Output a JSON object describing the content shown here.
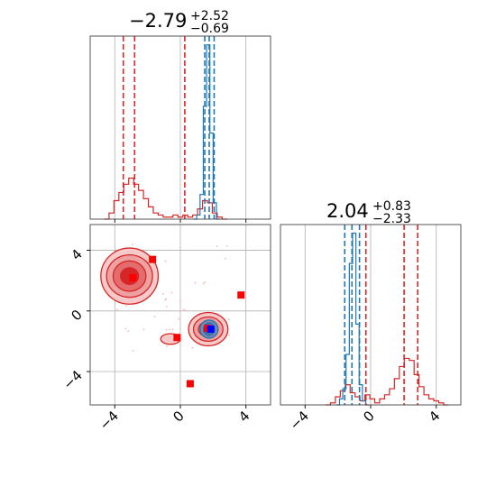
{
  "chart_data": {
    "type": "corner",
    "grid": true,
    "panels": [
      {
        "id": "marginal-param-1",
        "type": "histogram",
        "title": {
          "value": "−2.79",
          "upper": "+2.52",
          "lower": "−0.69"
        },
        "xlim": [
          -5.5,
          5.5
        ],
        "xticks": [
          -4,
          0,
          4
        ],
        "xtick_labels_shown": false,
        "series": [
          {
            "color": "#d62728",
            "x": [
              -4.5,
              -4.2,
              -3.9,
              -3.6,
              -3.3,
              -3.0,
              -2.7,
              -2.4,
              -2.1,
              -1.8,
              -1.5,
              -1.2,
              -0.9,
              -0.6,
              -0.3,
              0.0,
              0.3,
              0.6,
              0.9,
              1.2,
              1.5,
              1.8,
              2.1,
              2.4,
              2.7
            ],
            "counts": [
              0,
              3,
              9,
              13,
              17,
              20,
              17,
              14,
              10,
              6,
              3,
              2,
              1,
              1,
              2,
              1,
              2,
              1,
              2,
              5,
              9,
              8,
              3,
              1,
              0
            ],
            "quantile_lines": [
              -3.48,
              -2.79,
              0.27
            ]
          },
          {
            "color": "#1f77b4",
            "x": [
              0.9,
              1.1,
              1.3,
              1.5,
              1.7,
              1.9,
              2.1,
              2.3
            ],
            "counts": [
              0,
              2,
              12,
              55,
              85,
              42,
              8,
              0
            ],
            "quantile_lines": [
              1.49,
              1.76,
              2.06
            ]
          }
        ]
      },
      {
        "id": "marginal-param-2",
        "type": "histogram",
        "title": {
          "value": "2.04",
          "upper": "+0.83",
          "lower": "−2.33"
        },
        "xlim": [
          -5.5,
          5.5
        ],
        "xticks": [
          -4,
          0,
          4
        ],
        "xtick_labels": [
          "−4",
          "0",
          "4"
        ],
        "series": [
          {
            "color": "#d62728",
            "x": [
              -2.6,
              -2.3,
              -2.0,
              -1.7,
              -1.4,
              -1.1,
              -0.8,
              -0.5,
              -0.2,
              0.1,
              0.4,
              0.7,
              1.0,
              1.3,
              1.6,
              1.9,
              2.2,
              2.5,
              2.8,
              3.1,
              3.4,
              3.7,
              4.0,
              4.3,
              4.6
            ],
            "counts": [
              0,
              1,
              4,
              7,
              10,
              6,
              4,
              2,
              5,
              3,
              1,
              3,
              5,
              8,
              13,
              19,
              23,
              22,
              15,
              9,
              5,
              3,
              2,
              1,
              0
            ],
            "quantile_lines": [
              -0.29,
              2.04,
              2.87
            ]
          },
          {
            "color": "#1f77b4",
            "x": [
              -2.0,
              -1.8,
              -1.6,
              -1.4,
              -1.2,
              -1.0,
              -0.8,
              -0.6,
              -0.4,
              -0.2
            ],
            "counts": [
              0,
              3,
              8,
              25,
              70,
              85,
              40,
              10,
              2,
              0
            ],
            "quantile_lines": [
              -1.58,
              -1.14,
              -0.68
            ]
          }
        ]
      },
      {
        "id": "joint-param-1-2",
        "type": "contour",
        "xlim": [
          -5.5,
          5.5
        ],
        "ylim": [
          -6.2,
          5.7
        ],
        "xticks": [
          -4,
          0,
          4
        ],
        "yticks": [
          -4,
          0,
          4
        ],
        "xtick_labels": [
          "−4",
          "0",
          "4"
        ],
        "ytick_labels": [
          "−4",
          "0",
          "4"
        ],
        "red_blobs": [
          {
            "cx": -3.1,
            "cy": 2.3,
            "levels": [
              [
                1.75,
                1.85
              ],
              [
                1.4,
                1.4
              ],
              [
                1.0,
                1.0
              ],
              [
                0.55,
                0.55
              ]
            ]
          },
          {
            "cx": 1.7,
            "cy": -1.2,
            "levels": [
              [
                1.2,
                1.1
              ],
              [
                0.9,
                0.8
              ],
              [
                0.6,
                0.5
              ]
            ]
          },
          {
            "cx": -0.6,
            "cy": -1.85,
            "levels": [
              [
                0.6,
                0.35
              ]
            ]
          }
        ],
        "blue_blob": {
          "cx": 1.75,
          "cy": -1.2,
          "levels": [
            [
              0.55,
              0.6
            ],
            [
              0.35,
              0.4
            ]
          ]
        },
        "markers": [
          {
            "x": -2.9,
            "y": 2.2,
            "color": "#ff0000"
          },
          {
            "x": -1.7,
            "y": 3.4,
            "color": "#ff0000"
          },
          {
            "x": 3.7,
            "y": 1.05,
            "color": "#ff0000"
          },
          {
            "x": -0.2,
            "y": -1.75,
            "color": "#ff0000"
          },
          {
            "x": 1.65,
            "y": -1.15,
            "color": "#ff0000"
          },
          {
            "x": 0.6,
            "y": -4.8,
            "color": "#ff0000"
          },
          {
            "x": 1.85,
            "y": -1.2,
            "color": "#0000ff"
          }
        ]
      }
    ]
  }
}
